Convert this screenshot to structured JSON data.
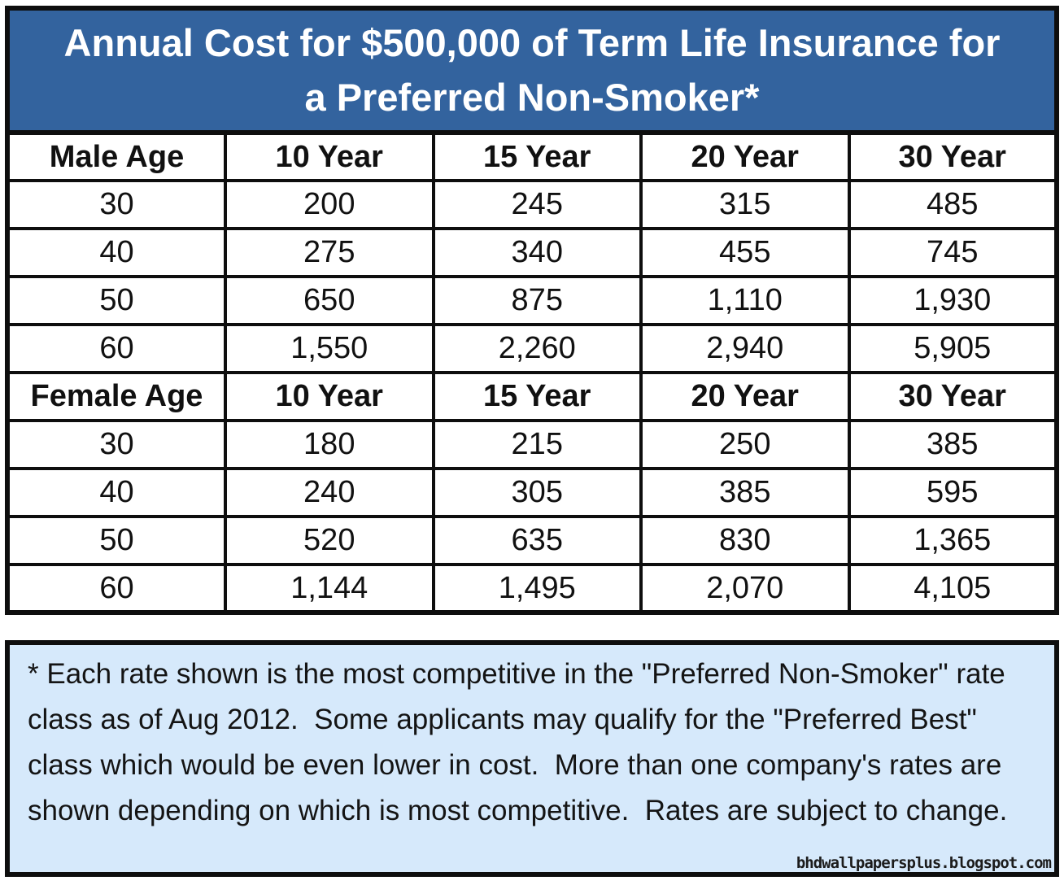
{
  "title": {
    "line1": "Annual Cost for $500,000 of Term Life Insurance for",
    "line2": "a Preferred Non-Smoker*",
    "background": "#33639E",
    "text_color": "#ffffff"
  },
  "table": {
    "sections": [
      {
        "header": {
          "label": "Male Age",
          "columns": [
            "10 Year",
            "15 Year",
            "20 Year",
            "30 Year"
          ]
        },
        "rows": [
          {
            "age": "30",
            "values": [
              "200",
              "245",
              "315",
              "485"
            ]
          },
          {
            "age": "40",
            "values": [
              "275",
              "340",
              "455",
              "745"
            ]
          },
          {
            "age": "50",
            "values": [
              "650",
              "875",
              "1,110",
              "1,930"
            ]
          },
          {
            "age": "60",
            "values": [
              "1,550",
              "2,260",
              "2,940",
              "5,905"
            ]
          }
        ]
      },
      {
        "header": {
          "label": "Female Age",
          "columns": [
            "10 Year",
            "15 Year",
            "20 Year",
            "30 Year"
          ]
        },
        "rows": [
          {
            "age": "30",
            "values": [
              "180",
              "215",
              "250",
              "385"
            ]
          },
          {
            "age": "40",
            "values": [
              "240",
              "305",
              "385",
              "595"
            ]
          },
          {
            "age": "50",
            "values": [
              "520",
              "635",
              "830",
              "1,365"
            ]
          },
          {
            "age": "60",
            "values": [
              "1,144",
              "1,495",
              "2,070",
              "4,105"
            ]
          }
        ]
      }
    ],
    "colors": {
      "shaded_cell": "#D6E9FB",
      "data_cell": "#ffffff",
      "border": "#0e0e0e"
    }
  },
  "footnote": {
    "text": "* Each rate shown is the most competitive in the \"Preferred Non-Smoker\" rate class as of Aug 2012.  Some applicants may qualify for the \"Preferred Best\" class which would be even lower in cost.  More than one company's rates are shown depending on which is most competitive.  Rates are subject to change.",
    "background": "#D6E9FB"
  },
  "watermark": "bhdwallpapersplus.blogspot.com",
  "chart_data": {
    "type": "table",
    "title": "Annual Cost for $500,000 of Term Life Insurance for a Preferred Non-Smoker*",
    "columns": [
      "10 Year",
      "15 Year",
      "20 Year",
      "30 Year"
    ],
    "series": [
      {
        "name": "Male Age",
        "ages": [
          30,
          40,
          50,
          60
        ],
        "values": [
          [
            200,
            245,
            315,
            485
          ],
          [
            275,
            340,
            455,
            745
          ],
          [
            650,
            875,
            1110,
            1930
          ],
          [
            1550,
            2260,
            2940,
            5905
          ]
        ]
      },
      {
        "name": "Female Age",
        "ages": [
          30,
          40,
          50,
          60
        ],
        "values": [
          [
            180,
            215,
            250,
            385
          ],
          [
            240,
            305,
            385,
            595
          ],
          [
            520,
            635,
            830,
            1365
          ],
          [
            1144,
            1495,
            2070,
            4105
          ]
        ]
      }
    ],
    "footnote": "* Each rate shown is the most competitive in the \"Preferred Non-Smoker\" rate class as of Aug 2012.  Some applicants may qualify for the \"Preferred Best\" class which would be even lower in cost.  More than one company's rates are shown depending on which is most competitive.  Rates are subject to change."
  }
}
